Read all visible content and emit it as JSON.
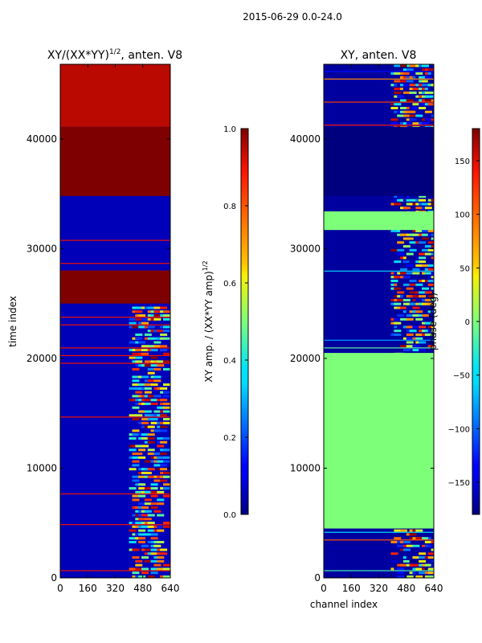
{
  "figure_title": "2015-06-29 0.0-24.0",
  "chart_data": [
    {
      "type": "heatmap",
      "title_main": "XY/(XX*YY)",
      "title_exp": "1/2",
      "title_tail": ", anten. V8",
      "xlabel": "",
      "ylabel": "time index",
      "xlim": [
        0,
        640
      ],
      "ylim": [
        0,
        46800
      ],
      "xticks": [
        0,
        160,
        320,
        480,
        640
      ],
      "yticks": [
        0,
        10000,
        20000,
        30000,
        40000
      ],
      "colorbar": {
        "label_main": "XY amp. / (XX*YY amp)",
        "label_exp": "1/2",
        "range": [
          0.0,
          1.0
        ],
        "ticks": [
          "0.0",
          "0.2",
          "0.4",
          "0.6",
          "0.8",
          "1.0"
        ]
      },
      "colormap": "jet",
      "regions": [
        {
          "name": "saturated block",
          "channels": [
            0,
            640
          ],
          "time_index": [
            34800,
            41100
          ],
          "value": 1.0
        },
        {
          "name": "saturated block",
          "channels": [
            0,
            640
          ],
          "time_index": [
            25000,
            28000
          ],
          "value": 1.0
        },
        {
          "name": "upper mixed band",
          "channels": [
            0,
            640
          ],
          "time_index": [
            41100,
            46800
          ],
          "value": 0.95
        },
        {
          "name": "active channels",
          "channels": [
            400,
            610
          ],
          "time_index": [
            0,
            24800
          ],
          "value": 0.5
        },
        {
          "name": "background",
          "channels": [
            0,
            640
          ],
          "time_index": [
            0,
            46800
          ],
          "value": 0.05
        }
      ]
    },
    {
      "type": "heatmap",
      "title": "XY, anten. V8",
      "xlabel": "channel index",
      "ylabel": "",
      "xlim": [
        0,
        640
      ],
      "ylim": [
        0,
        46800
      ],
      "xticks": [
        0,
        160,
        320,
        480,
        640
      ],
      "yticks": [
        0,
        10000,
        20000,
        30000,
        40000
      ],
      "colorbar": {
        "label": "phase (deg)",
        "range": [
          -180,
          180
        ],
        "ticks": [
          "150",
          "100",
          "50",
          "0",
          "−50",
          "−100",
          "−150"
        ]
      },
      "colormap": "jet",
      "regions": [
        {
          "name": "zero phase block",
          "channels": [
            0,
            640
          ],
          "time_index": [
            34800,
            41100
          ],
          "value": -180
        },
        {
          "name": "constant phase block",
          "channels": [
            0,
            640
          ],
          "time_index": [
            31700,
            33400
          ],
          "value": 0
        },
        {
          "name": "constant phase band",
          "channels": [
            0,
            640
          ],
          "time_index": [
            4500,
            20500
          ],
          "value": 0
        },
        {
          "name": "active channels",
          "channels": [
            390,
            640
          ],
          "time_index": [
            0,
            46800
          ],
          "value": 60
        },
        {
          "name": "background",
          "channels": [
            0,
            640
          ],
          "time_index": [
            0,
            46800
          ],
          "value": -170
        }
      ]
    }
  ]
}
